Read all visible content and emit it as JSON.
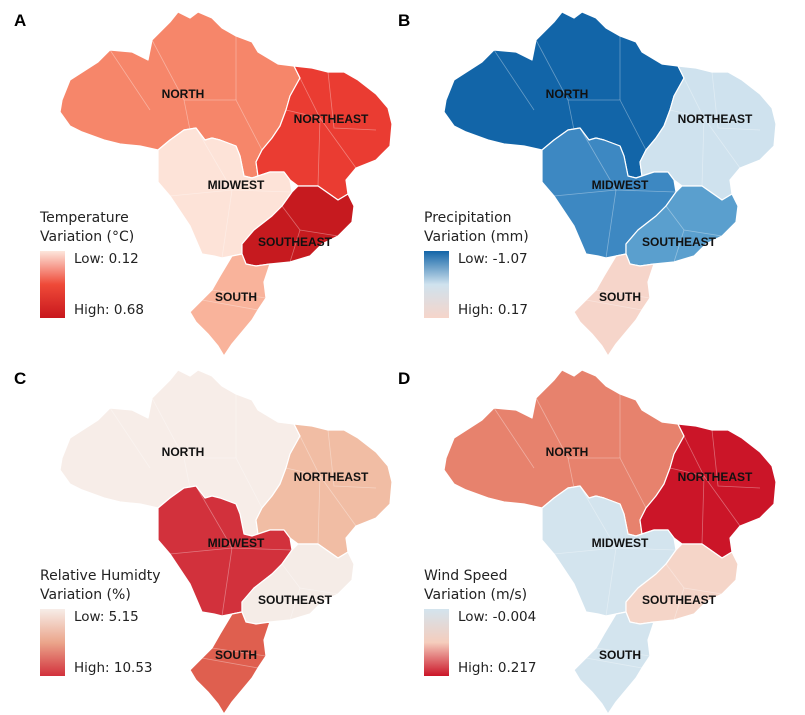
{
  "panels": [
    {
      "letter": "A",
      "legend": {
        "title_line1": "Temperature",
        "title_line2": "Variation (°C)",
        "low": "Low: 0.12",
        "high": "High: 0.68",
        "gradient": [
          "#fde6dc",
          "#ef4a38",
          "#c8171d"
        ]
      },
      "regions": {
        "north": {
          "label": "NORTH",
          "color": "#f6866a"
        },
        "northeast": {
          "label": "NORTHEAST",
          "color": "#ea3c32"
        },
        "midwest": {
          "label": "MIDWEST",
          "color": "#fde3d8"
        },
        "southeast": {
          "label": "SOUTHEAST",
          "color": "#c61a1f"
        },
        "south": {
          "label": "SOUTH",
          "color": "#f9b39b"
        }
      }
    },
    {
      "letter": "B",
      "legend": {
        "title_line1": "Precipitation",
        "title_line2": "Variation (mm)",
        "low": "Low: -1.07",
        "high": "High: 0.17",
        "gradient": [
          "#1265a8",
          "#cfe2ee",
          "#f6d5ca"
        ]
      },
      "regions": {
        "north": {
          "label": "NORTH",
          "color": "#1265a8"
        },
        "northeast": {
          "label": "NORTHEAST",
          "color": "#cfe2ee"
        },
        "midwest": {
          "label": "MIDWEST",
          "color": "#3d88c2"
        },
        "southeast": {
          "label": "SOUTHEAST",
          "color": "#5a9fce"
        },
        "south": {
          "label": "SOUTH",
          "color": "#f6d5ca"
        }
      }
    },
    {
      "letter": "C",
      "legend": {
        "title_line1": "Relative Humidty",
        "title_line2": "Variation (%)",
        "low": "Low: 5.15",
        "high": "High: 10.53",
        "gradient": [
          "#f7ede8",
          "#eba58b",
          "#d2313c"
        ]
      },
      "regions": {
        "north": {
          "label": "NORTH",
          "color": "#f7ede8"
        },
        "northeast": {
          "label": "NORTHEAST",
          "color": "#f1bda4"
        },
        "midwest": {
          "label": "MIDWEST",
          "color": "#d2313c"
        },
        "southeast": {
          "label": "SOUTHEAST",
          "color": "#f5ece7"
        },
        "south": {
          "label": "SOUTH",
          "color": "#df5f4f"
        }
      }
    },
    {
      "letter": "D",
      "legend": {
        "title_line1": "Wind Speed",
        "title_line2": "Variation (m/s)",
        "low": "Low: -0.004",
        "high": "High: 0.217",
        "gradient": [
          "#d3e4ee",
          "#f5cdbd",
          "#cb1528"
        ]
      },
      "regions": {
        "north": {
          "label": "NORTH",
          "color": "#e7826d"
        },
        "northeast": {
          "label": "NORTHEAST",
          "color": "#cb1528"
        },
        "midwest": {
          "label": "MIDWEST",
          "color": "#d3e4ee"
        },
        "southeast": {
          "label": "SOUTHEAST",
          "color": "#f5d5c8"
        },
        "south": {
          "label": "SOUTH",
          "color": "#d3e4ee"
        }
      }
    }
  ]
}
